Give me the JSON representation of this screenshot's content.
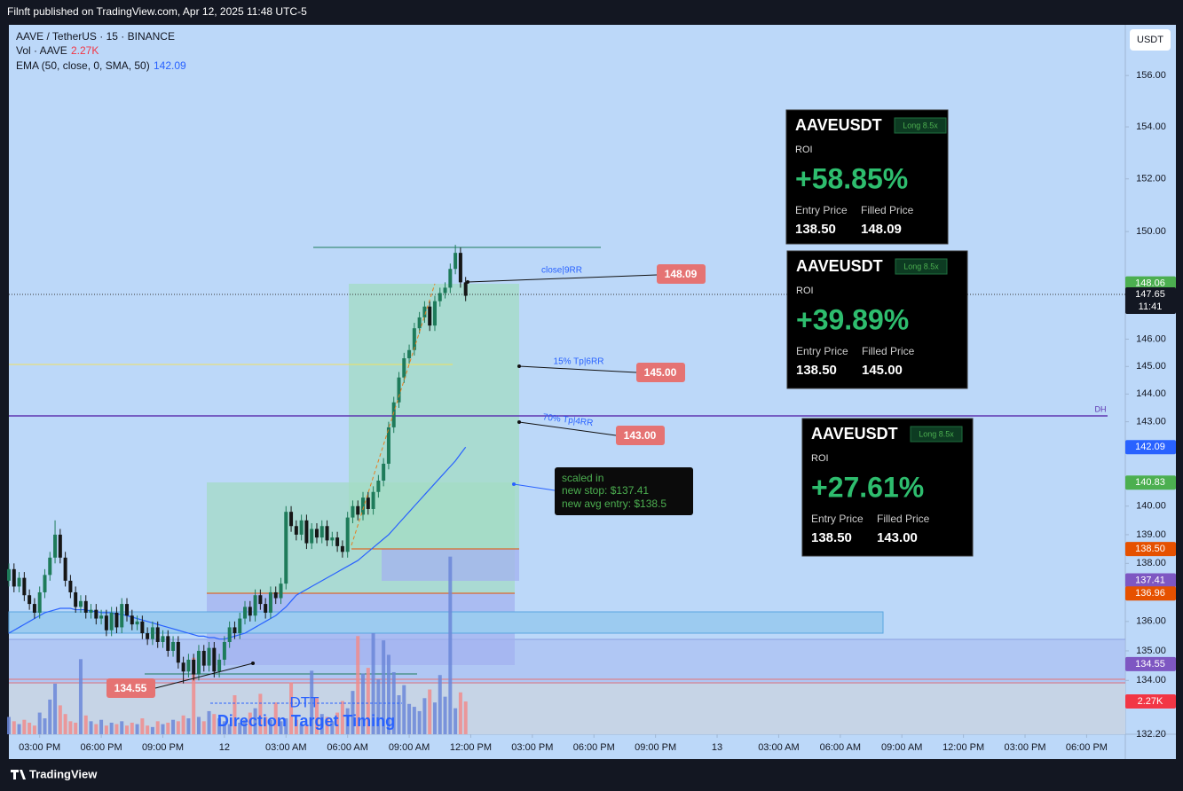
{
  "header": {
    "publisher": "Filnft published on TradingView.com, Apr 12, 2025 11:48 UTC-5"
  },
  "footer": {
    "brand": "TradingView"
  },
  "chart_data": {
    "type": "candlestick",
    "symbol": "AAVE / TetherUS · 15 · BINANCE",
    "currency": "USDT",
    "log_scale": true,
    "up_color": "#1e7b5a",
    "down_color": "#161616",
    "x": [
      -6,
      -5,
      -4,
      -3,
      -2,
      -1,
      0,
      1,
      2,
      3,
      4,
      5,
      6,
      7,
      8,
      9,
      10,
      11,
      12,
      13,
      14,
      15,
      16,
      17,
      18,
      19,
      20,
      21,
      22,
      23,
      24,
      25,
      26,
      27,
      28,
      29,
      30,
      31,
      32,
      33,
      34,
      35,
      36,
      37,
      38,
      39,
      40,
      41,
      42,
      43,
      44,
      45,
      46,
      47,
      48,
      49,
      50,
      51,
      52,
      53,
      54,
      55,
      56,
      57,
      58,
      59,
      60,
      61,
      62,
      63,
      64,
      65,
      66,
      67,
      68,
      69,
      70,
      71,
      72,
      73,
      74,
      75,
      76,
      77,
      78,
      79,
      80,
      81,
      82,
      83
    ],
    "ohlc": [
      [
        137.4,
        138.0,
        137.2,
        137.8
      ],
      [
        137.8,
        138.0,
        137.0,
        137.2
      ],
      [
        137.2,
        137.7,
        137.0,
        137.5
      ],
      [
        137.5,
        137.7,
        136.7,
        136.9
      ],
      [
        136.9,
        137.1,
        136.4,
        136.6
      ],
      [
        136.6,
        136.8,
        136.1,
        136.3
      ],
      [
        136.3,
        137.2,
        136.1,
        137.0
      ],
      [
        137.0,
        137.8,
        136.8,
        137.6
      ],
      [
        137.6,
        138.4,
        137.4,
        138.2
      ],
      [
        138.2,
        139.5,
        138.0,
        139.0
      ],
      [
        139.0,
        139.2,
        138.0,
        138.2
      ],
      [
        138.2,
        138.4,
        137.2,
        137.4
      ],
      [
        137.4,
        137.6,
        136.8,
        137.0
      ],
      [
        137.0,
        137.2,
        136.3,
        136.5
      ],
      [
        136.5,
        136.9,
        136.3,
        136.7
      ],
      [
        136.7,
        136.9,
        136.1,
        136.3
      ],
      [
        136.3,
        136.6,
        136.1,
        136.4
      ],
      [
        136.4,
        136.6,
        135.9,
        136.1
      ],
      [
        136.1,
        136.4,
        135.9,
        136.2
      ],
      [
        136.2,
        136.4,
        135.5,
        135.7
      ],
      [
        135.7,
        136.5,
        135.5,
        136.3
      ],
      [
        136.3,
        136.5,
        135.6,
        135.8
      ],
      [
        135.8,
        136.8,
        135.6,
        136.6
      ],
      [
        136.6,
        136.8,
        136.0,
        136.2
      ],
      [
        136.2,
        136.4,
        135.7,
        135.9
      ],
      [
        135.9,
        136.2,
        135.7,
        136.0
      ],
      [
        136.0,
        136.2,
        135.4,
        135.6
      ],
      [
        135.6,
        135.8,
        135.2,
        135.4
      ],
      [
        135.4,
        136.0,
        135.2,
        135.8
      ],
      [
        135.8,
        136.0,
        135.1,
        135.3
      ],
      [
        135.3,
        135.7,
        135.1,
        135.5
      ],
      [
        135.5,
        135.7,
        134.8,
        135.0
      ],
      [
        135.0,
        135.5,
        134.8,
        135.3
      ],
      [
        135.3,
        135.5,
        134.4,
        134.6
      ],
      [
        134.6,
        134.8,
        133.9,
        134.3
      ],
      [
        134.3,
        134.9,
        134.1,
        134.7
      ],
      [
        134.7,
        134.9,
        134.0,
        134.2
      ],
      [
        134.2,
        135.2,
        134.0,
        135.0
      ],
      [
        135.0,
        135.2,
        134.3,
        134.5
      ],
      [
        134.5,
        135.3,
        134.3,
        135.1
      ],
      [
        135.1,
        135.3,
        134.1,
        134.3
      ],
      [
        134.3,
        134.9,
        134.1,
        134.7
      ],
      [
        134.7,
        135.5,
        134.5,
        135.3
      ],
      [
        135.3,
        136.0,
        135.1,
        135.8
      ],
      [
        135.8,
        136.0,
        135.4,
        135.6
      ],
      [
        135.6,
        136.3,
        135.4,
        136.1
      ],
      [
        136.1,
        136.7,
        135.9,
        136.5
      ],
      [
        136.5,
        136.7,
        136.0,
        136.2
      ],
      [
        136.2,
        137.1,
        136.0,
        136.9
      ],
      [
        136.9,
        137.1,
        136.4,
        136.6
      ],
      [
        136.6,
        136.8,
        136.1,
        136.3
      ],
      [
        136.3,
        137.2,
        136.1,
        137.0
      ],
      [
        137.0,
        137.2,
        136.6,
        136.8
      ],
      [
        136.8,
        137.5,
        136.6,
        137.3
      ],
      [
        137.3,
        140.0,
        137.1,
        139.8
      ],
      [
        139.8,
        140.0,
        139.1,
        139.3
      ],
      [
        139.3,
        139.5,
        138.8,
        139.0
      ],
      [
        139.0,
        139.7,
        138.8,
        139.5
      ],
      [
        139.5,
        139.7,
        138.5,
        138.7
      ],
      [
        138.7,
        139.4,
        138.5,
        139.2
      ],
      [
        139.2,
        139.4,
        138.7,
        138.9
      ],
      [
        138.9,
        139.5,
        138.7,
        139.3
      ],
      [
        139.3,
        139.5,
        138.6,
        138.8
      ],
      [
        138.8,
        139.1,
        138.6,
        138.9
      ],
      [
        138.9,
        139.1,
        138.4,
        138.6
      ],
      [
        138.6,
        138.8,
        138.2,
        138.4
      ],
      [
        138.4,
        139.8,
        138.2,
        139.6
      ],
      [
        139.6,
        140.2,
        139.4,
        140.0
      ],
      [
        140.0,
        140.2,
        139.5,
        139.7
      ],
      [
        139.7,
        140.5,
        139.5,
        140.3
      ],
      [
        140.3,
        140.5,
        139.7,
        139.9
      ],
      [
        139.9,
        140.7,
        139.7,
        140.5
      ],
      [
        140.5,
        141.1,
        140.3,
        140.9
      ],
      [
        140.9,
        141.7,
        140.7,
        141.5
      ],
      [
        141.5,
        143.0,
        141.3,
        142.8
      ],
      [
        142.8,
        143.9,
        142.6,
        143.7
      ],
      [
        143.7,
        144.8,
        143.5,
        144.6
      ],
      [
        144.6,
        145.5,
        144.4,
        145.3
      ],
      [
        145.3,
        145.8,
        145.1,
        145.6
      ],
      [
        145.6,
        146.6,
        145.4,
        146.4
      ],
      [
        146.4,
        147.0,
        146.2,
        146.8
      ],
      [
        146.8,
        147.4,
        146.6,
        147.2
      ],
      [
        147.2,
        147.4,
        146.3,
        146.5
      ],
      [
        146.5,
        147.6,
        146.3,
        147.4
      ],
      [
        147.4,
        147.9,
        147.2,
        147.7
      ],
      [
        147.7,
        148.1,
        147.5,
        147.9
      ],
      [
        147.9,
        148.8,
        147.7,
        148.6
      ],
      [
        148.6,
        149.5,
        148.4,
        149.2
      ],
      [
        149.2,
        149.4,
        147.9,
        148.1
      ],
      [
        148.1,
        148.3,
        147.4,
        147.6
      ]
    ],
    "volume": {
      "name": "Vol · AAVE",
      "value_label": "2.27K",
      "up_color": "#6b87d8",
      "down_color": "#f08c8c",
      "badge_color": "#f23645",
      "ylim": [
        0,
        14000
      ],
      "values": [
        1200,
        900,
        700,
        1000,
        800,
        600,
        1500,
        1100,
        2400,
        3500,
        2000,
        1400,
        900,
        800,
        5200,
        1300,
        900,
        700,
        1000,
        600,
        800,
        700,
        900,
        600,
        800,
        700,
        1100,
        600,
        500,
        900,
        700,
        800,
        1000,
        900,
        1300,
        1100,
        5300,
        1200,
        900,
        1600,
        1400,
        1100,
        900,
        700,
        2700,
        800,
        1000,
        1500,
        1800,
        2800,
        1200,
        1000,
        2200,
        900,
        1100,
        3600,
        1000,
        700,
        600,
        4400,
        2500,
        1400,
        1200,
        900,
        1500,
        2300,
        1800,
        3000,
        6800,
        4200,
        4600,
        7000,
        3800,
        6500,
        5500,
        4300,
        2700,
        3400,
        2100,
        1900,
        1600,
        2500,
        3100,
        2200,
        4100,
        2600,
        12300,
        1800,
        2900,
        2270
      ]
    },
    "ema": {
      "name": "EMA (50, close, 0, SMA, 50)",
      "value_label": "142.09",
      "color": "#2962ff",
      "values": [
        135.6,
        135.7,
        135.8,
        135.9,
        136.0,
        136.1,
        136.2,
        136.3,
        136.35,
        136.4,
        136.45,
        136.45,
        136.45,
        136.4,
        136.4,
        136.4,
        136.35,
        136.35,
        136.3,
        136.3,
        136.3,
        136.25,
        136.25,
        136.2,
        136.15,
        136.1,
        136.05,
        136.0,
        135.95,
        135.9,
        135.85,
        135.8,
        135.75,
        135.7,
        135.65,
        135.6,
        135.55,
        135.5,
        135.5,
        135.45,
        135.45,
        135.4,
        135.4,
        135.45,
        135.5,
        135.55,
        135.6,
        135.7,
        135.8,
        135.9,
        136.0,
        136.1,
        136.2,
        136.35,
        136.5,
        136.7,
        136.9,
        137.0,
        137.1,
        137.2,
        137.3,
        137.4,
        137.5,
        137.6,
        137.7,
        137.8,
        137.9,
        138.0,
        138.1,
        138.25,
        138.4,
        138.55,
        138.7,
        138.85,
        139.0,
        139.2,
        139.4,
        139.6,
        139.8,
        140.0,
        140.2,
        140.4,
        140.6,
        140.8,
        141.0,
        141.2,
        141.4,
        141.6,
        141.85,
        142.09
      ]
    },
    "xlim": [
      -6,
      210.5
    ],
    "xticks": [
      {
        "value": 0,
        "label": "03:00 PM"
      },
      {
        "value": 12,
        "label": "06:00 PM"
      },
      {
        "value": 24,
        "label": "09:00 PM"
      },
      {
        "value": 36,
        "label": "12"
      },
      {
        "value": 48,
        "label": "03:00 AM"
      },
      {
        "value": 60,
        "label": "06:00 AM"
      },
      {
        "value": 72,
        "label": "09:00 AM"
      },
      {
        "value": 84,
        "label": "12:00 PM"
      },
      {
        "value": 96,
        "label": "03:00 PM"
      },
      {
        "value": 108,
        "label": "06:00 PM"
      },
      {
        "value": 120,
        "label": "09:00 PM"
      },
      {
        "value": 132,
        "label": "13"
      },
      {
        "value": 144,
        "label": "03:00 AM"
      },
      {
        "value": 156,
        "label": "06:00 AM"
      },
      {
        "value": 168,
        "label": "09:00 AM"
      },
      {
        "value": 180,
        "label": "12:00 PM"
      },
      {
        "value": 192,
        "label": "03:00 PM"
      },
      {
        "value": 204,
        "label": "06:00 PM"
      }
    ],
    "ylim": [
      132.2,
      158.0
    ],
    "yticks": [
      {
        "value": 156,
        "label": "156.00"
      },
      {
        "value": 154,
        "label": "154.00"
      },
      {
        "value": 152,
        "label": "152.00"
      },
      {
        "value": 150,
        "label": "150.00"
      },
      {
        "value": 146,
        "label": "146.00"
      },
      {
        "value": 145,
        "label": "145.00"
      },
      {
        "value": 144,
        "label": "144.00"
      },
      {
        "value": 143,
        "label": "143.00"
      },
      {
        "value": 140,
        "label": "140.00"
      },
      {
        "value": 139,
        "label": "139.00"
      },
      {
        "value": 138,
        "label": "138.00"
      },
      {
        "value": 136,
        "label": "136.00"
      },
      {
        "value": 135,
        "label": "135.00"
      },
      {
        "value": 134,
        "label": "134.00"
      },
      {
        "value": 132.2,
        "label": "132.20"
      }
    ],
    "price_badges": [
      {
        "value": 148.06,
        "label": "148.06",
        "color": "#4caf50"
      },
      {
        "value": 147.65,
        "label": "147.65",
        "time": "11:41",
        "color": "#131722"
      },
      {
        "value": 140.83,
        "label": "140.83",
        "color": "#4caf50"
      },
      {
        "value": 138.5,
        "label": "138.50",
        "color": "#e65100"
      },
      {
        "value": 137.41,
        "label": "137.41",
        "color": "#7e57c2"
      },
      {
        "value": 136.96,
        "label": "136.96",
        "color": "#e65100"
      },
      {
        "value": 134.55,
        "label": "134.55",
        "color": "#7e57c2"
      }
    ],
    "annotations": {
      "close_tp": "close|9RR",
      "tp15": "15% Tp|6RR",
      "tp70": "70% Tp|4RR",
      "tag_close": "148.09",
      "tag_15": "145.00",
      "tag_70": "143.00",
      "tag_low": "134.55",
      "dh": "DH",
      "note": [
        "scaled in",
        "new stop: $137.41",
        "new avg entry: $138.5"
      ],
      "dtt": "DTT",
      "dtt_full": "Direction Target Timing"
    },
    "cards": [
      {
        "title": "AAVEUSDT",
        "tag": "Long 8.5x",
        "roi_label": "ROI",
        "roi": "+58.85%",
        "entry_label": "Entry Price",
        "filled_label": "Filled Price",
        "entry": "138.50",
        "filled": "148.09"
      },
      {
        "title": "AAVEUSDT",
        "tag": "Long 8.5x",
        "roi_label": "ROI",
        "roi": "+39.89%",
        "entry_label": "Entry Price",
        "filled_label": "Filled Price",
        "entry": "138.50",
        "filled": "145.00"
      },
      {
        "title": "AAVEUSDT",
        "tag": "Long 8.5x",
        "roi_label": "ROI",
        "roi": "+27.61%",
        "entry_label": "Entry Price",
        "filled_label": "Filled Price",
        "entry": "138.50",
        "filled": "143.00"
      }
    ]
  }
}
